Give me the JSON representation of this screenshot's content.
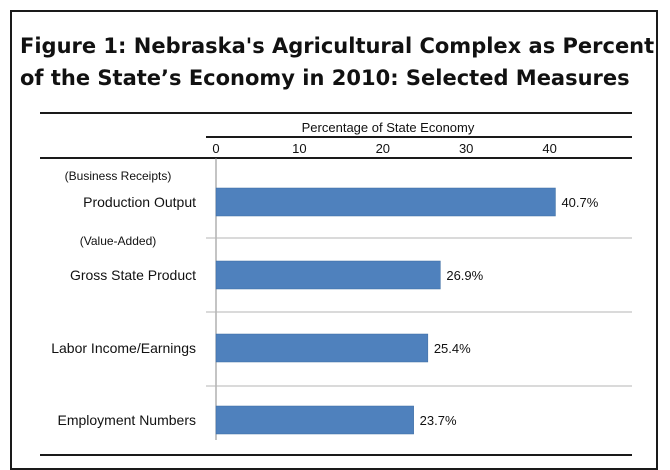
{
  "chart_data": {
    "type": "bar",
    "orientation": "horizontal",
    "title_lines": [
      "Figure 1:  Nebraska's Agricultural Complex as Percent",
      "of the State’s Economy in 2010:  Selected Measures"
    ],
    "xlabel": "Percentage of State Economy",
    "xlim": [
      0,
      40
    ],
    "xticks": [
      0,
      10,
      20,
      30,
      40
    ],
    "categories": [
      "Production Output",
      "Gross State Product",
      "Labor Income/Earnings",
      "Employment Numbers"
    ],
    "category_sublabels": [
      "(Business Receipts)",
      "(Value-Added)",
      "",
      ""
    ],
    "values": [
      40.7,
      26.9,
      25.4,
      23.7
    ],
    "value_labels": [
      "40.7%",
      "26.9%",
      "25.4%",
      "23.7%"
    ],
    "bar_color": "#4f81bd",
    "grid": false,
    "legend": "none"
  }
}
